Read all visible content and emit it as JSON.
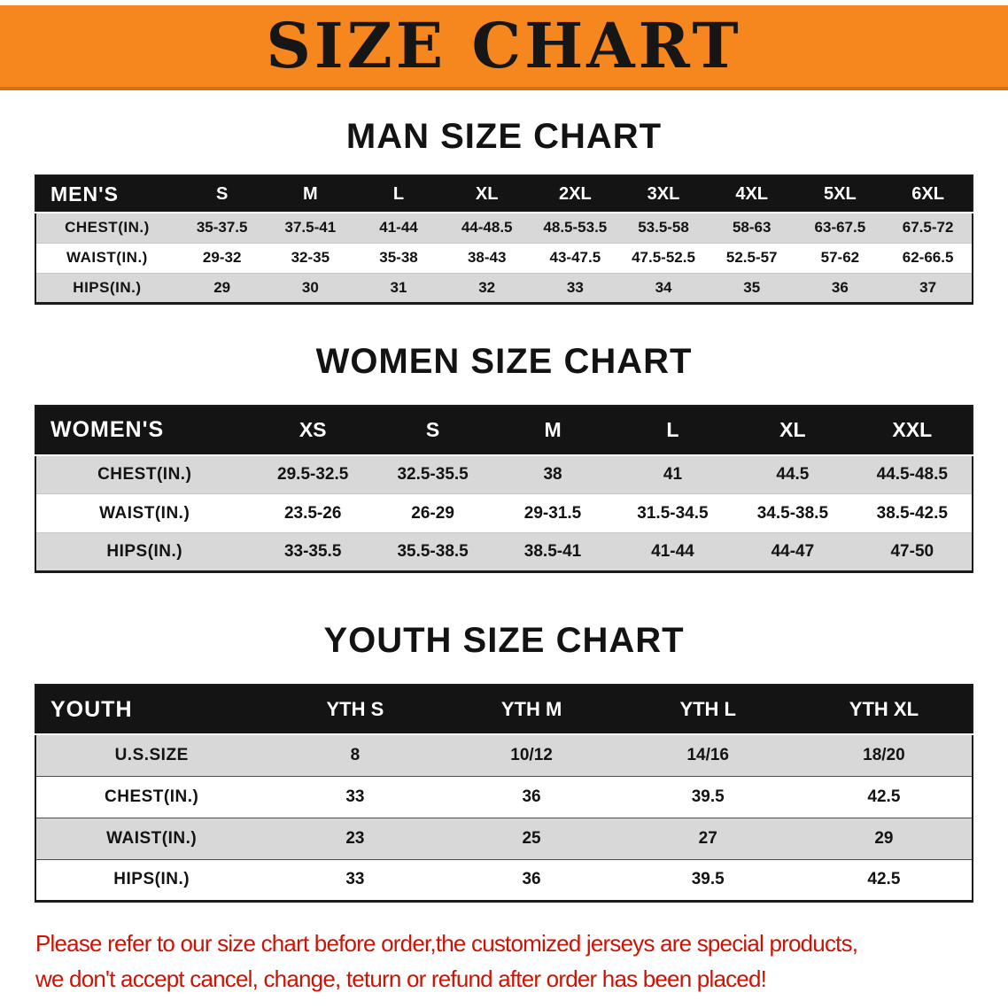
{
  "banner": {
    "title": "SIZE CHART",
    "bg_color": "#f6871f"
  },
  "sections": [
    {
      "id": "men",
      "heading": "MAN SIZE CHART",
      "table": {
        "header": [
          "MEN'S",
          "S",
          "M",
          "L",
          "XL",
          "2XL",
          "3XL",
          "4XL",
          "5XL",
          "6XL"
        ],
        "rows": [
          {
            "label": "CHEST(IN.)",
            "values": [
              "35-37.5",
              "37.5-41",
              "41-44",
              "44-48.5",
              "48.5-53.5",
              "53.5-58",
              "58-63",
              "63-67.5",
              "67.5-72"
            ]
          },
          {
            "label": "WAIST(IN.)",
            "values": [
              "29-32",
              "32-35",
              "35-38",
              "38-43",
              "43-47.5",
              "47.5-52.5",
              "52.5-57",
              "57-62",
              "62-66.5"
            ]
          },
          {
            "label": "HIPS(IN.)",
            "values": [
              "29",
              "30",
              "31",
              "32",
              "33",
              "34",
              "35",
              "36",
              "37"
            ]
          }
        ]
      }
    },
    {
      "id": "women",
      "heading": "WOMEN SIZE CHART",
      "table": {
        "header": [
          "WOMEN'S",
          "XS",
          "S",
          "M",
          "L",
          "XL",
          "XXL"
        ],
        "rows": [
          {
            "label": "CHEST(IN.)",
            "values": [
              "29.5-32.5",
              "32.5-35.5",
              "38",
              "41",
              "44.5",
              "44.5-48.5"
            ]
          },
          {
            "label": "WAIST(IN.)",
            "values": [
              "23.5-26",
              "26-29",
              "29-31.5",
              "31.5-34.5",
              "34.5-38.5",
              "38.5-42.5"
            ]
          },
          {
            "label": "HIPS(IN.)",
            "values": [
              "33-35.5",
              "35.5-38.5",
              "38.5-41",
              "41-44",
              "44-47",
              "47-50"
            ]
          }
        ]
      }
    },
    {
      "id": "youth",
      "heading": "YOUTH SIZE CHART",
      "table": {
        "header": [
          "YOUTH",
          "YTH S",
          "YTH M",
          "YTH L",
          "YTH XL"
        ],
        "rows": [
          {
            "label": "U.S.SIZE",
            "values": [
              "8",
              "10/12",
              "14/16",
              "18/20"
            ]
          },
          {
            "label": "CHEST(IN.)",
            "values": [
              "33",
              "36",
              "39.5",
              "42.5"
            ]
          },
          {
            "label": "WAIST(IN.)",
            "values": [
              "23",
              "25",
              "27",
              "29"
            ]
          },
          {
            "label": "HIPS(IN.)",
            "values": [
              "33",
              "36",
              "39.5",
              "42.5"
            ]
          }
        ]
      }
    }
  ],
  "disclaimer": {
    "lines": [
      "Please refer to our size chart before order,the customized jerseys are special products,",
      "we don't accept cancel, change, teturn or refund after order has been placed!"
    ],
    "color": "#cc1405"
  }
}
